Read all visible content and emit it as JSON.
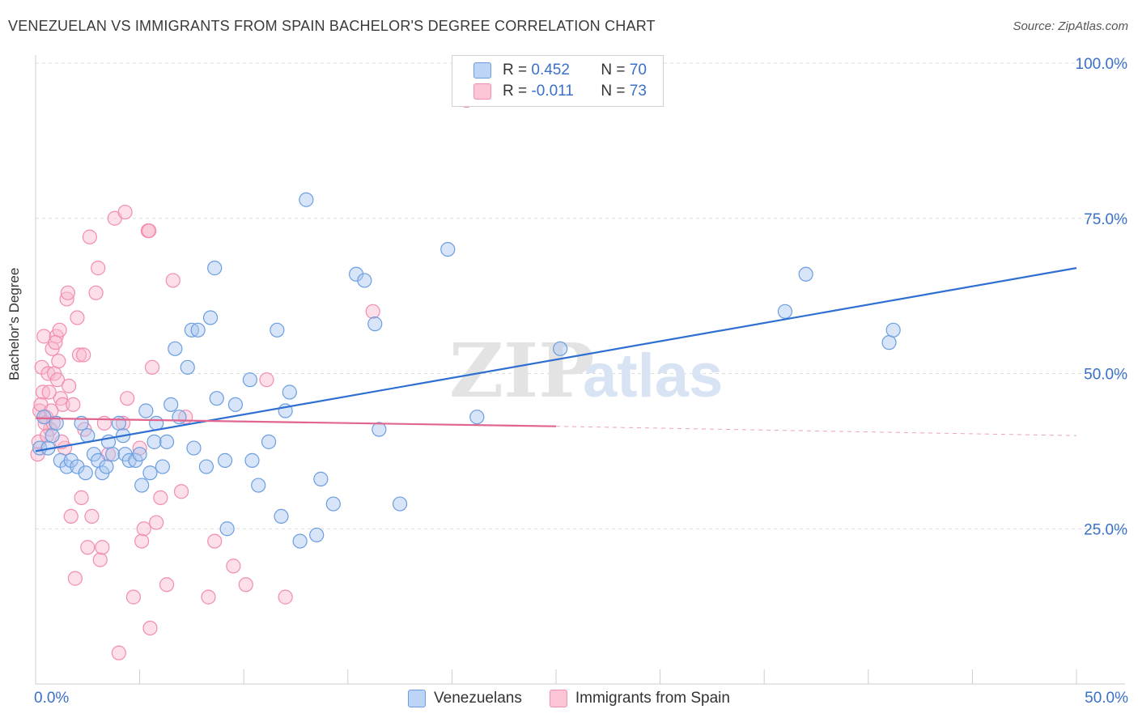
{
  "title": "VENEZUELAN VS IMMIGRANTS FROM SPAIN BACHELOR'S DEGREE CORRELATION CHART",
  "source": "Source: ZipAtlas.com",
  "watermark": {
    "zip": "ZIP",
    "atlas": "atlas"
  },
  "legend_stats": {
    "venezuelans": {
      "r_label": "R =",
      "r_value": "0.452",
      "n_label": "N =",
      "n_value": "70"
    },
    "spain": {
      "r_label": "R =",
      "r_value": "-0.011",
      "n_label": "N =",
      "n_value": "73"
    }
  },
  "chart_data": {
    "type": "scatter",
    "title": "VENEZUELAN VS IMMIGRANTS FROM SPAIN BACHELOR'S DEGREE CORRELATION CHART",
    "xlabel": "",
    "ylabel": "Bachelor's Degree",
    "xlim": [
      0,
      50
    ],
    "ylim": [
      0,
      100
    ],
    "x_tick_labels": [
      "0.0%",
      "50.0%"
    ],
    "y_tick_labels": [
      "25.0%",
      "50.0%",
      "75.0%",
      "100.0%"
    ],
    "y_ticks": [
      25,
      50,
      75,
      100
    ],
    "legend_position": "bottom-center",
    "colors": {
      "venezuelans": "#6a9ee0",
      "spain": "#f28cb0",
      "venezuelans_line": "#2e6fd1",
      "spain_line": "#e0658f",
      "axis_label": "#3a70c8"
    },
    "series": [
      {
        "name": "Venezuelans",
        "trend": {
          "x0": 0,
          "y0": 37.5,
          "x1": 50,
          "y1": 67
        },
        "points": [
          [
            0.2,
            38
          ],
          [
            0.4,
            43
          ],
          [
            0.6,
            38
          ],
          [
            0.8,
            40
          ],
          [
            1.0,
            42
          ],
          [
            1.2,
            36
          ],
          [
            1.5,
            35
          ],
          [
            1.7,
            36
          ],
          [
            2.0,
            35
          ],
          [
            2.2,
            42
          ],
          [
            2.5,
            40
          ],
          [
            2.8,
            37
          ],
          [
            3.0,
            36
          ],
          [
            3.2,
            34
          ],
          [
            3.4,
            35
          ],
          [
            3.5,
            39
          ],
          [
            3.7,
            37
          ],
          [
            4.0,
            42
          ],
          [
            4.2,
            40
          ],
          [
            4.3,
            37
          ],
          [
            4.5,
            36
          ],
          [
            4.8,
            36
          ],
          [
            5.0,
            37
          ],
          [
            5.1,
            32
          ],
          [
            5.3,
            44
          ],
          [
            5.5,
            34
          ],
          [
            5.7,
            39
          ],
          [
            5.8,
            42
          ],
          [
            6.1,
            35
          ],
          [
            6.3,
            39
          ],
          [
            6.5,
            45
          ],
          [
            6.7,
            54
          ],
          [
            6.9,
            43
          ],
          [
            7.3,
            51
          ],
          [
            7.5,
            57
          ],
          [
            7.6,
            38
          ],
          [
            7.8,
            57
          ],
          [
            8.2,
            35
          ],
          [
            8.4,
            59
          ],
          [
            8.6,
            67
          ],
          [
            8.7,
            46
          ],
          [
            9.1,
            36
          ],
          [
            9.2,
            25
          ],
          [
            9.6,
            45
          ],
          [
            10.3,
            49
          ],
          [
            10.4,
            36
          ],
          [
            10.7,
            32
          ],
          [
            11.2,
            39
          ],
          [
            11.6,
            57
          ],
          [
            11.8,
            27
          ],
          [
            12.0,
            44
          ],
          [
            12.2,
            47
          ],
          [
            12.7,
            23
          ],
          [
            13.0,
            78
          ],
          [
            13.5,
            24
          ],
          [
            13.7,
            33
          ],
          [
            14.3,
            29
          ],
          [
            15.4,
            66
          ],
          [
            15.8,
            65
          ],
          [
            16.3,
            58
          ],
          [
            16.5,
            41
          ],
          [
            17.5,
            29
          ],
          [
            19.8,
            70
          ],
          [
            21.2,
            43
          ],
          [
            25.2,
            54
          ],
          [
            36.0,
            60
          ],
          [
            37.0,
            66
          ],
          [
            41.0,
            55
          ],
          [
            41.2,
            57
          ],
          [
            2.4,
            34
          ]
        ]
      },
      {
        "name": "Immigrants from Spain",
        "trend": {
          "x0": 0,
          "y0": 42.8,
          "x1": 25,
          "y1": 41.5,
          "dashed_to_x": 50,
          "dashed_to_y": 40
        },
        "points": [
          [
            0.1,
            37
          ],
          [
            0.2,
            44
          ],
          [
            0.3,
            51
          ],
          [
            0.35,
            47
          ],
          [
            0.4,
            56
          ],
          [
            0.5,
            43
          ],
          [
            0.6,
            50
          ],
          [
            0.7,
            41
          ],
          [
            0.8,
            54
          ],
          [
            0.9,
            50
          ],
          [
            1.0,
            56
          ],
          [
            1.05,
            49
          ],
          [
            1.1,
            52
          ],
          [
            1.15,
            57
          ],
          [
            1.2,
            46
          ],
          [
            1.3,
            45
          ],
          [
            1.4,
            38
          ],
          [
            1.5,
            62
          ],
          [
            1.55,
            63
          ],
          [
            1.6,
            48
          ],
          [
            1.7,
            27
          ],
          [
            1.8,
            45
          ],
          [
            1.9,
            17
          ],
          [
            2.0,
            59
          ],
          [
            2.1,
            53
          ],
          [
            2.2,
            30
          ],
          [
            2.3,
            53
          ],
          [
            2.5,
            22
          ],
          [
            2.6,
            72
          ],
          [
            2.7,
            27
          ],
          [
            2.9,
            63
          ],
          [
            3.0,
            67
          ],
          [
            3.1,
            20
          ],
          [
            3.2,
            22
          ],
          [
            3.3,
            42
          ],
          [
            3.5,
            37
          ],
          [
            3.8,
            75
          ],
          [
            4.0,
            5
          ],
          [
            4.2,
            42
          ],
          [
            4.3,
            76
          ],
          [
            4.4,
            46
          ],
          [
            4.7,
            14
          ],
          [
            5.0,
            38
          ],
          [
            5.1,
            23
          ],
          [
            5.2,
            25
          ],
          [
            5.4,
            73
          ],
          [
            5.5,
            9
          ],
          [
            5.6,
            51
          ],
          [
            5.8,
            26
          ],
          [
            6.0,
            30
          ],
          [
            6.3,
            16
          ],
          [
            6.6,
            65
          ],
          [
            7.0,
            31
          ],
          [
            7.2,
            43
          ],
          [
            8.3,
            14
          ],
          [
            8.6,
            23
          ],
          [
            9.5,
            19
          ],
          [
            10.1,
            16
          ],
          [
            11.1,
            49
          ],
          [
            12.0,
            14
          ],
          [
            16.2,
            60
          ],
          [
            20.7,
            94
          ],
          [
            0.15,
            39
          ],
          [
            0.25,
            45
          ],
          [
            0.45,
            42
          ],
          [
            0.55,
            40
          ],
          [
            0.65,
            47
          ],
          [
            0.75,
            44
          ],
          [
            0.85,
            42
          ],
          [
            0.95,
            55
          ],
          [
            1.25,
            39
          ],
          [
            5.45,
            73
          ],
          [
            2.35,
            41
          ]
        ]
      }
    ]
  },
  "legend_bottom": {
    "venezuelans": "Venezuelans",
    "spain": "Immigrants from Spain"
  }
}
